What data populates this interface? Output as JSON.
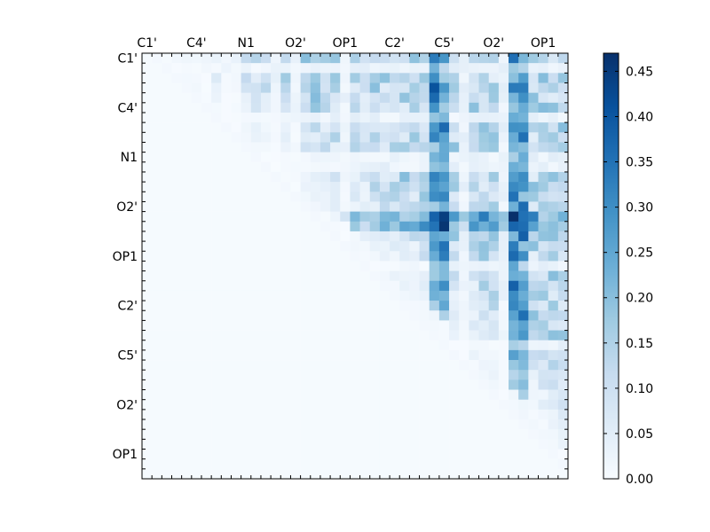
{
  "chart_data": {
    "type": "heatmap",
    "title": "",
    "xlabel": "",
    "ylabel": "",
    "x_tick_labels": [
      "C1'",
      "C4'",
      "N1",
      "O2'",
      "OP1",
      "C2'",
      "C5'",
      "O2'",
      "OP1"
    ],
    "y_tick_labels": [
      "C1'",
      "C4'",
      "N1",
      "O2'",
      "OP1",
      "C2'",
      "C5'",
      "O2'",
      "OP1"
    ],
    "n_rows": 43,
    "n_cols": 43,
    "tick_spacing_cells": 5,
    "upper_triangle_only": true,
    "colormap": "Blues",
    "colormap_stops": [
      "#f7fbff",
      "#deebf7",
      "#c6dbef",
      "#9ecae1",
      "#6baed6",
      "#4292c6",
      "#2171b5",
      "#08519c",
      "#08306b"
    ],
    "value_range": [
      0.0,
      0.47
    ],
    "colorbar_ticks": [
      "0.00",
      "0.05",
      "0.10",
      "0.15",
      "0.20",
      "0.25",
      "0.30",
      "0.35",
      "0.40",
      "0.45"
    ],
    "colorbar_tick_values": [
      0.0,
      0.05,
      0.1,
      0.15,
      0.2,
      0.25,
      0.3,
      0.35,
      0.4,
      0.45
    ],
    "value_pattern": {
      "near_diagonal_low": 0.01,
      "far_region_typical": 0.15,
      "peak_value": 0.46,
      "hot_columns": [
        29,
        30,
        37,
        38
      ],
      "hot_rows": [
        16,
        17
      ]
    }
  }
}
